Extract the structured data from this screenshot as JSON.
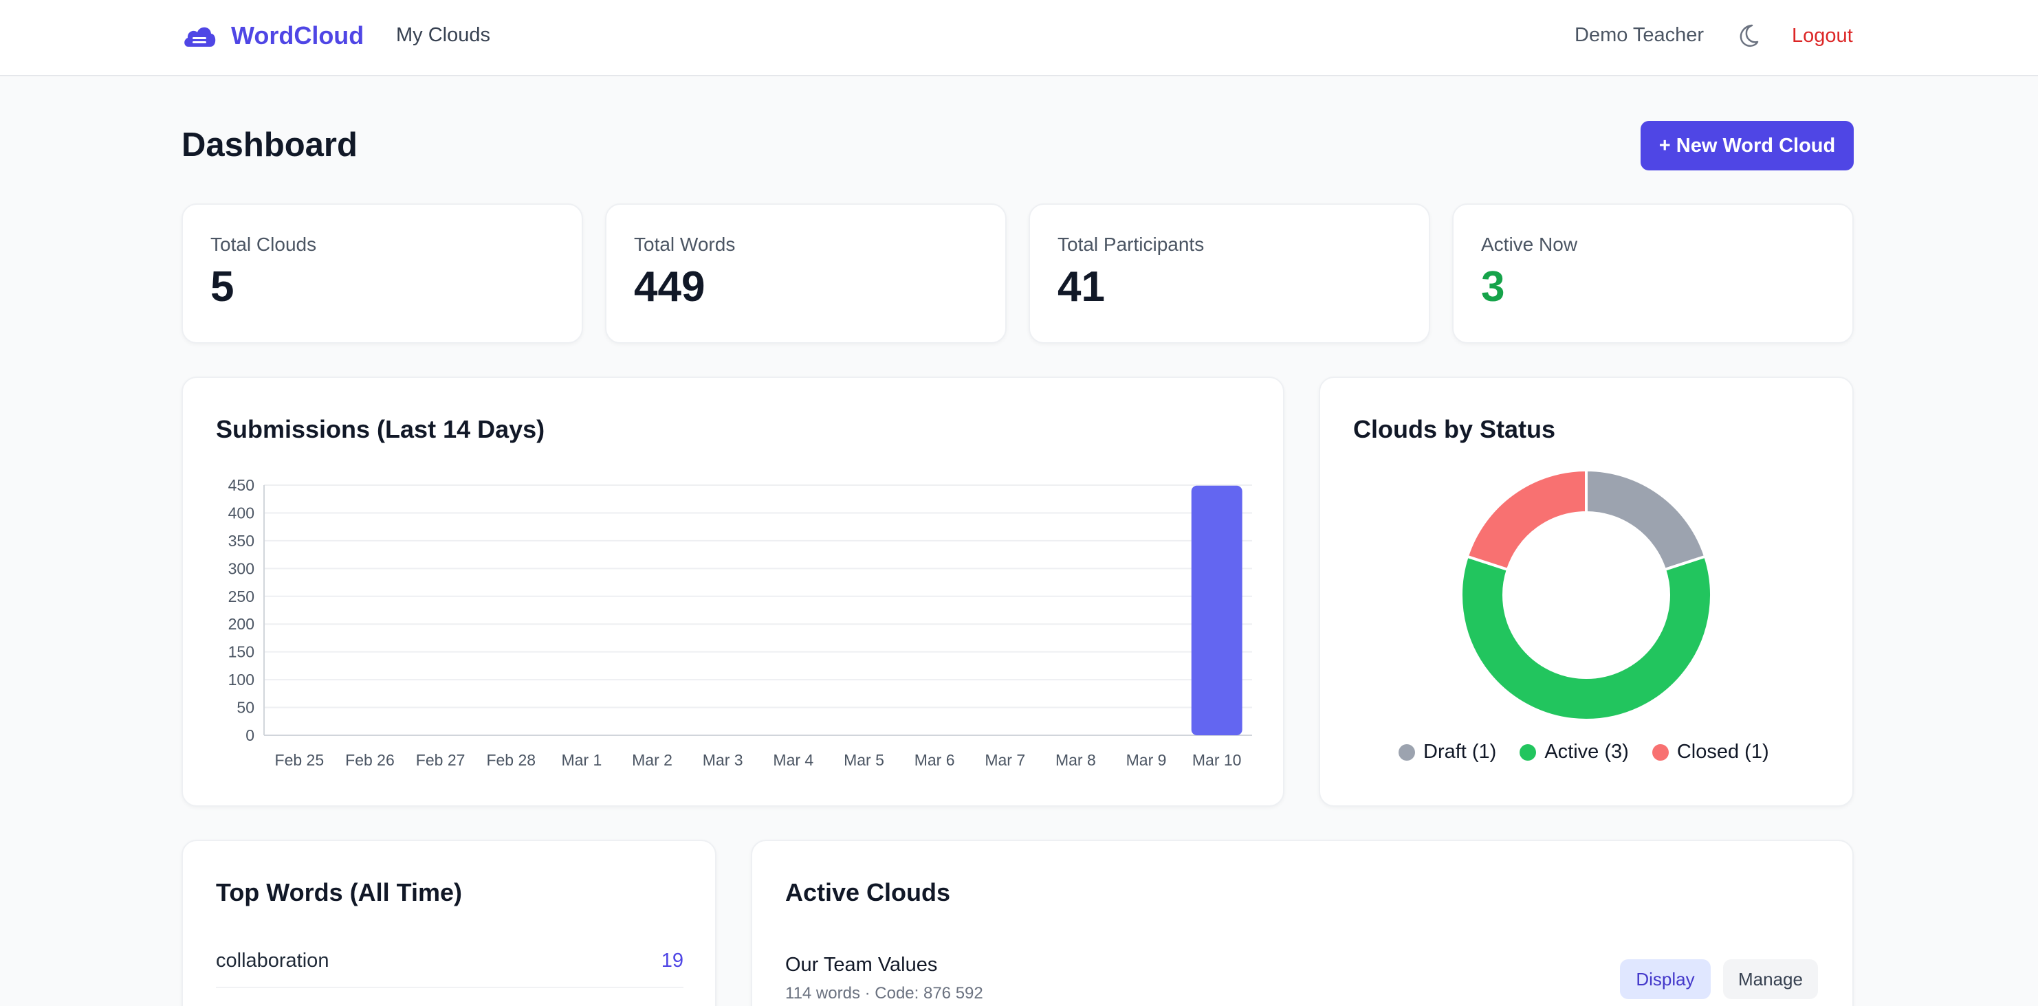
{
  "nav": {
    "brand": "WordCloud",
    "my_clouds": "My Clouds",
    "user": "Demo Teacher",
    "logout": "Logout",
    "brand_color": "#4f46e5",
    "logout_color": "#dc2626"
  },
  "header": {
    "title": "Dashboard",
    "new_button": "+ New Word Cloud"
  },
  "stats": [
    {
      "label": "Total Clouds",
      "value": "5"
    },
    {
      "label": "Total Words",
      "value": "449"
    },
    {
      "label": "Total Participants",
      "value": "41"
    },
    {
      "label": "Active Now",
      "value": "3",
      "color": "#16a34a"
    }
  ],
  "submissions": {
    "title": "Submissions (Last 14 Days)"
  },
  "status": {
    "title": "Clouds by Status",
    "legend": [
      "Draft (1)",
      "Active (3)",
      "Closed (1)"
    ]
  },
  "chart_data": [
    {
      "type": "bar",
      "title": "Submissions (Last 14 Days)",
      "categories": [
        "Feb 25",
        "Feb 26",
        "Feb 27",
        "Feb 28",
        "Mar 1",
        "Mar 2",
        "Mar 3",
        "Mar 4",
        "Mar 5",
        "Mar 6",
        "Mar 7",
        "Mar 8",
        "Mar 9",
        "Mar 10"
      ],
      "values": [
        0,
        0,
        0,
        0,
        0,
        0,
        0,
        0,
        0,
        0,
        0,
        0,
        0,
        449
      ],
      "ylim": [
        0,
        450
      ],
      "yticks": [
        0,
        50,
        100,
        150,
        200,
        250,
        300,
        350,
        400,
        450
      ],
      "grid": true,
      "color": "#6366f1"
    },
    {
      "type": "pie",
      "title": "Clouds by Status",
      "labels": [
        "Draft",
        "Active",
        "Closed"
      ],
      "values": [
        1,
        3,
        1
      ],
      "colors": [
        "#9ca3af",
        "#22c55e",
        "#f87171"
      ],
      "legend": "bottom"
    }
  ],
  "top_words": {
    "title": "Top Words (All Time)",
    "items": [
      {
        "word": "collaboration",
        "count": "19"
      }
    ]
  },
  "active_clouds": {
    "title": "Active Clouds",
    "items": [
      {
        "name": "Our Team Values",
        "meta": "114 words · Code: 876 592",
        "display": "Display",
        "manage": "Manage"
      }
    ]
  }
}
